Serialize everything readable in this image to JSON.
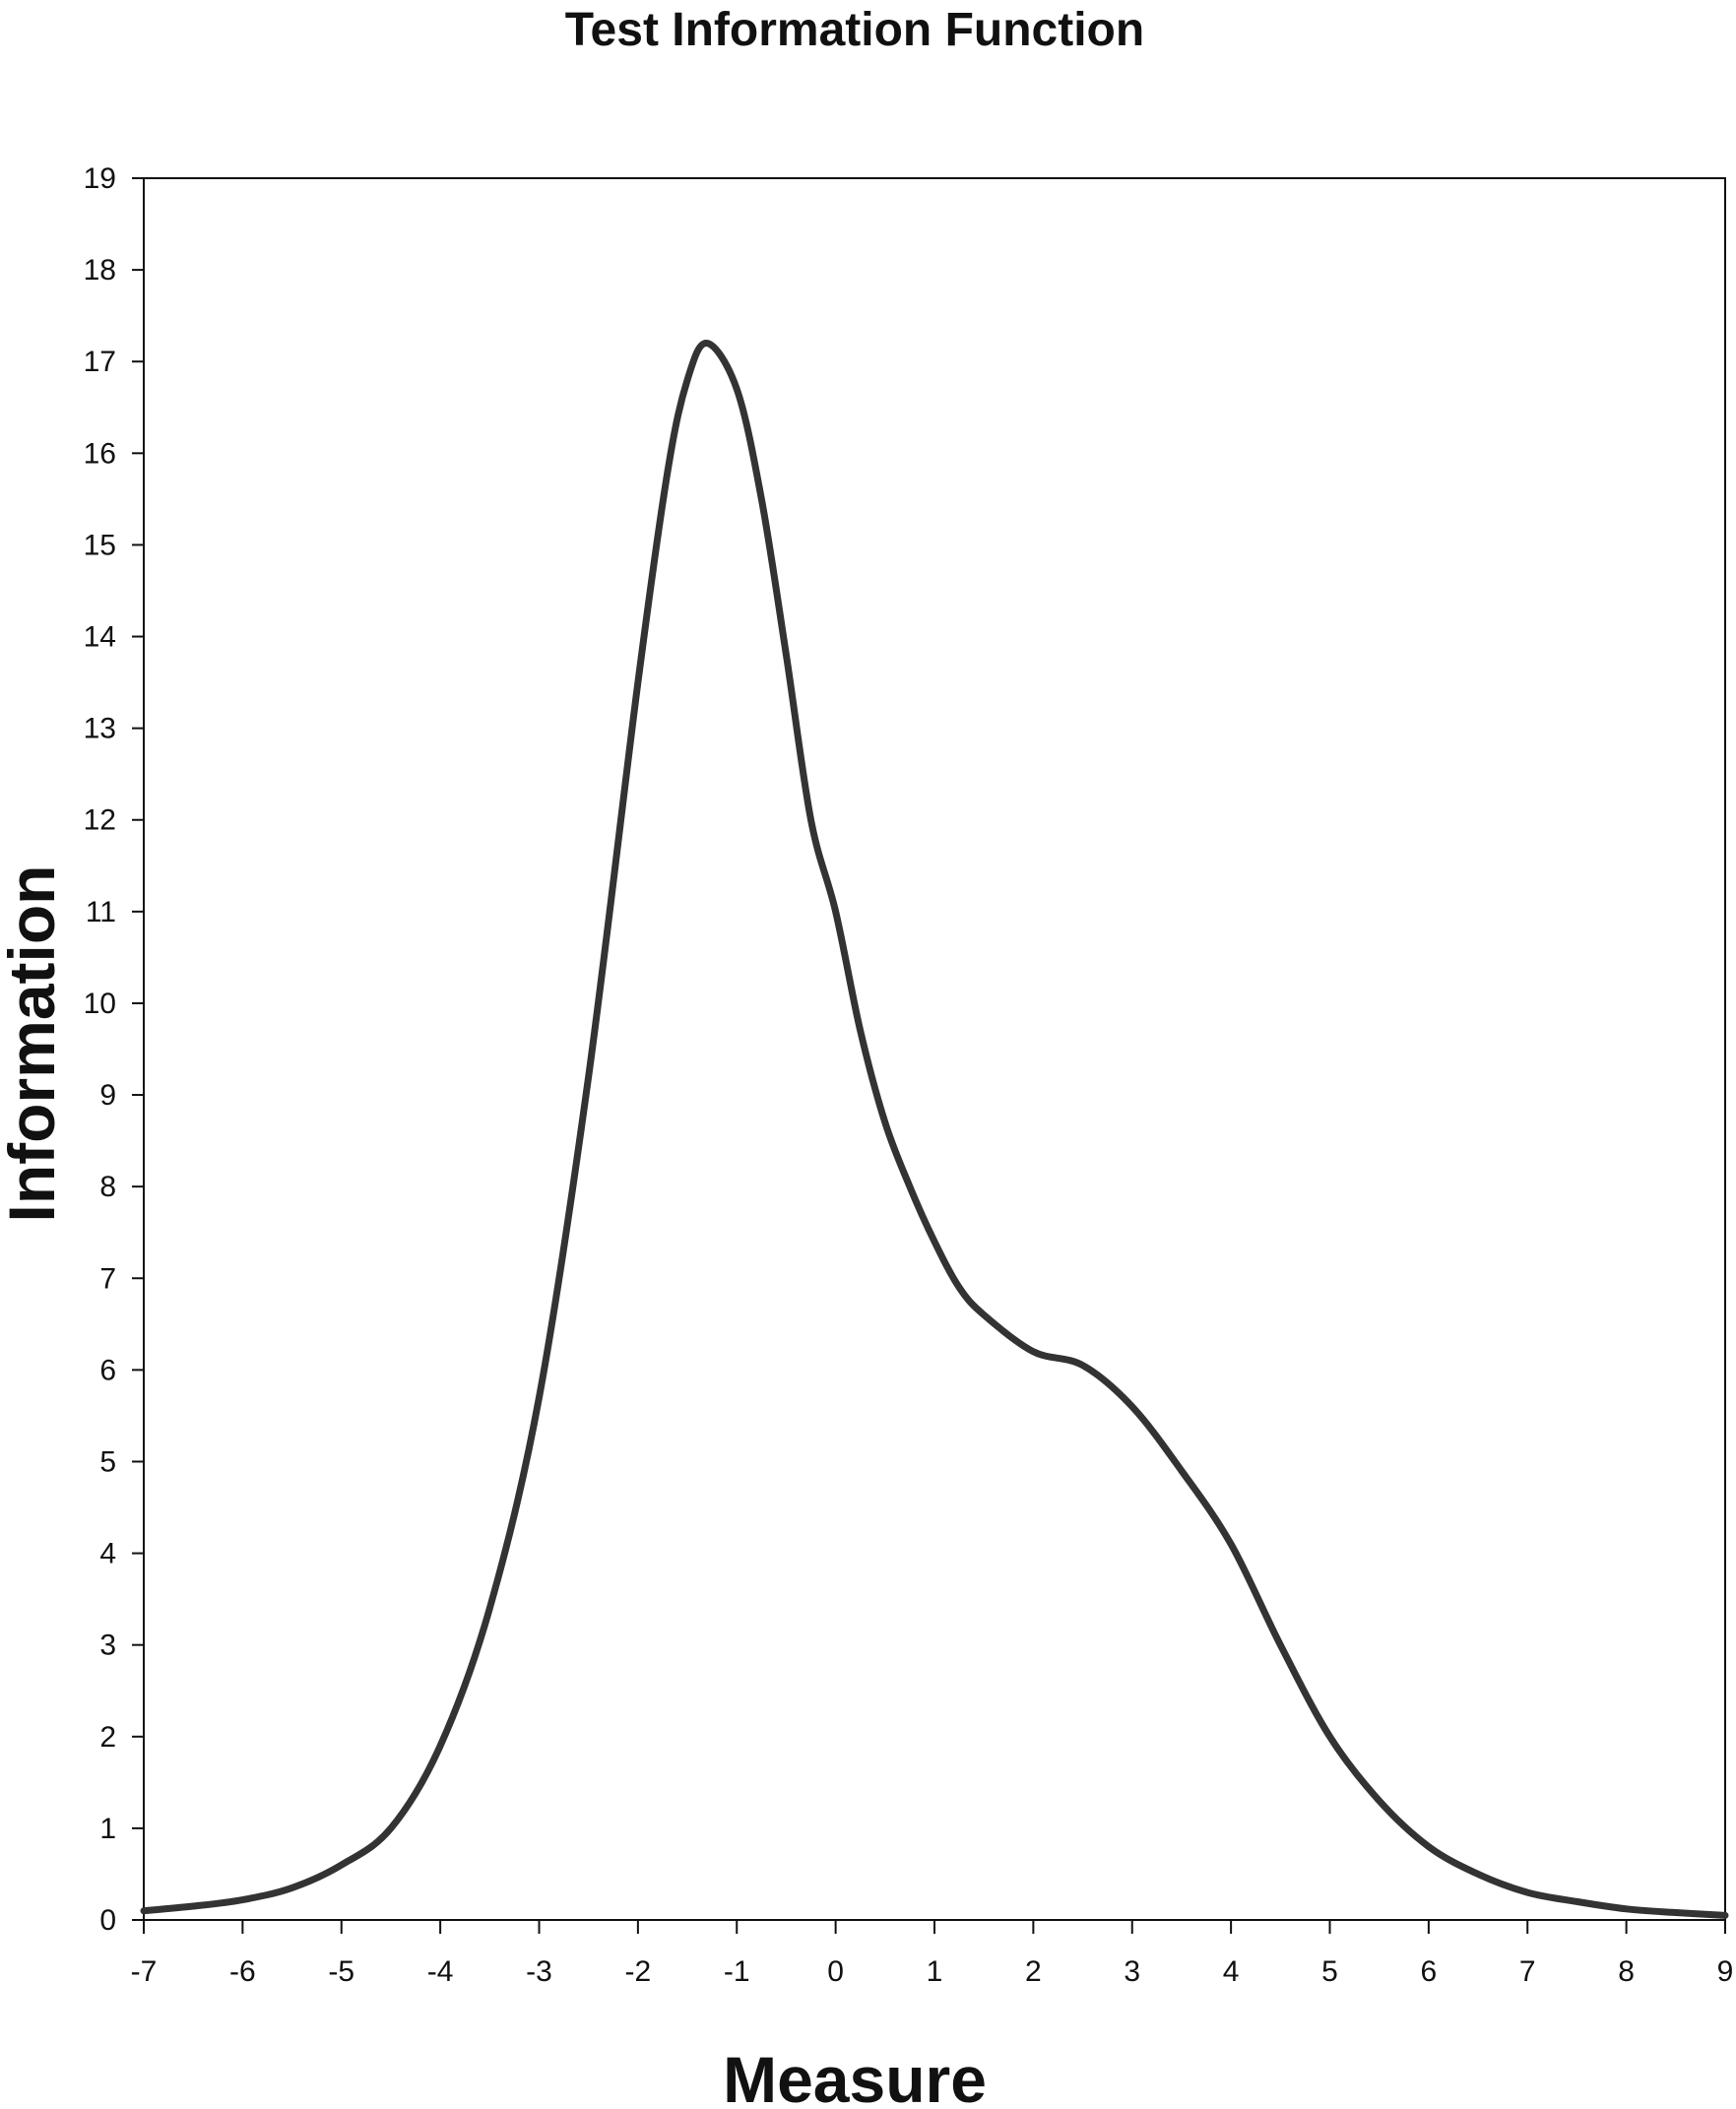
{
  "chart_data": {
    "type": "line",
    "title": "Test Information Function",
    "xlabel": "Measure",
    "ylabel": "Information",
    "xlim": [
      -7,
      9
    ],
    "ylim": [
      0,
      19
    ],
    "x_ticks": [
      -7,
      -6,
      -5,
      -4,
      -3,
      -2,
      -1,
      0,
      1,
      2,
      3,
      4,
      5,
      6,
      7,
      8,
      9
    ],
    "y_ticks": [
      0,
      1,
      2,
      3,
      4,
      5,
      6,
      7,
      8,
      9,
      10,
      11,
      12,
      13,
      14,
      15,
      16,
      17,
      18,
      19
    ],
    "grid": false,
    "legend": "none",
    "series": [
      {
        "color": "#333333",
        "points": [
          [
            -7,
            0.1
          ],
          [
            -6.5,
            0.15
          ],
          [
            -6,
            0.22
          ],
          [
            -5.5,
            0.35
          ],
          [
            -5,
            0.6
          ],
          [
            -4.5,
            1.0
          ],
          [
            -4,
            1.9
          ],
          [
            -3.5,
            3.4
          ],
          [
            -3,
            5.7
          ],
          [
            -2.5,
            9.2
          ],
          [
            -2,
            13.5
          ],
          [
            -1.7,
            15.8
          ],
          [
            -1.5,
            16.8
          ],
          [
            -1.3,
            17.2
          ],
          [
            -1,
            16.7
          ],
          [
            -0.75,
            15.5
          ],
          [
            -0.5,
            13.8
          ],
          [
            -0.25,
            12.0
          ],
          [
            0,
            11.0
          ],
          [
            0.25,
            9.7
          ],
          [
            0.5,
            8.7
          ],
          [
            0.75,
            8.0
          ],
          [
            1,
            7.4
          ],
          [
            1.25,
            6.9
          ],
          [
            1.5,
            6.6
          ],
          [
            2,
            6.2
          ],
          [
            2.5,
            6.05
          ],
          [
            3,
            5.6
          ],
          [
            3.5,
            4.9
          ],
          [
            4,
            4.1
          ],
          [
            4.5,
            3.0
          ],
          [
            5,
            2.0
          ],
          [
            5.5,
            1.3
          ],
          [
            6,
            0.8
          ],
          [
            6.5,
            0.5
          ],
          [
            7,
            0.3
          ],
          [
            7.5,
            0.2
          ],
          [
            8,
            0.12
          ],
          [
            8.5,
            0.08
          ],
          [
            9,
            0.05
          ]
        ]
      }
    ]
  }
}
